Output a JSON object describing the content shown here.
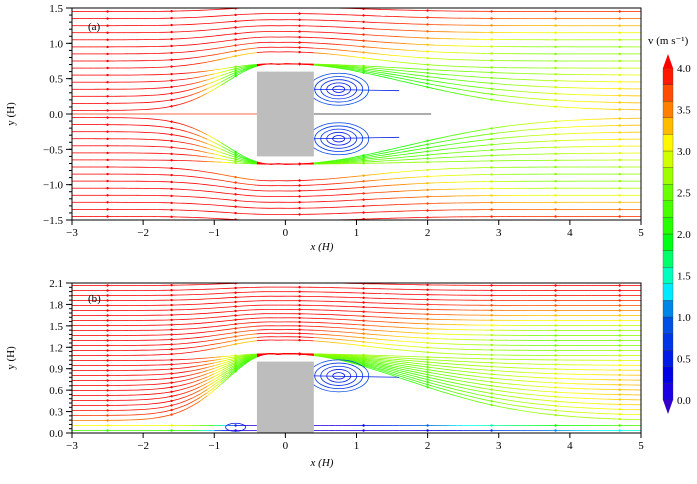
{
  "chart_data": {
    "type": "streamline",
    "panels": [
      {
        "label": "(a)",
        "xlabel": "x (H)",
        "ylabel": "y (H)",
        "xlim": [
          -3,
          5
        ],
        "ylim": [
          -1.5,
          1.5
        ],
        "xticks": [
          -3,
          -2,
          -1,
          0,
          1,
          2,
          3,
          4,
          5
        ],
        "xtick_labels": [
          "−3",
          "−2",
          "−1",
          "0",
          "1",
          "2",
          "3",
          "4",
          "5"
        ],
        "yticks": [
          -1.5,
          -1.0,
          -0.5,
          0.0,
          0.5,
          1.0,
          1.5
        ],
        "ytick_labels": [
          "−1.5",
          "−1.0",
          "−0.5",
          "0.0",
          "0.5",
          "1.0",
          "1.5"
        ],
        "obstacle": {
          "x": [
            -0.4,
            0.4
          ],
          "y": [
            -0.6,
            0.6
          ],
          "color": "#bdbdbd"
        },
        "vortices": [
          {
            "x": 0.75,
            "y": 0.35
          },
          {
            "x": 0.75,
            "y": -0.35
          }
        ]
      },
      {
        "label": "(b)",
        "xlabel": "x (H)",
        "ylabel": "y (H)",
        "xlim": [
          -3,
          5
        ],
        "ylim": [
          0,
          2.1
        ],
        "xticks": [
          -3,
          -2,
          -1,
          0,
          1,
          2,
          3,
          4,
          5
        ],
        "xtick_labels": [
          "−3",
          "−2",
          "−1",
          "0",
          "1",
          "2",
          "3",
          "4",
          "5"
        ],
        "yticks": [
          0.0,
          0.3,
          0.6,
          0.9,
          1.2,
          1.5,
          1.8,
          2.1
        ],
        "ytick_labels": [
          "0.0",
          "0.3",
          "0.6",
          "0.9",
          "1.2",
          "1.5",
          "1.8",
          "2.1"
        ],
        "obstacle": {
          "x": [
            -0.4,
            0.4
          ],
          "y": [
            0,
            1.0
          ],
          "color": "#bdbdbd"
        },
        "vortices": [
          {
            "x": 0.75,
            "y": 0.8
          }
        ]
      }
    ],
    "colorbar": {
      "label": "v (m s⁻¹)",
      "range": [
        0,
        4
      ],
      "step": 0.2,
      "ticks": [
        0.0,
        0.5,
        1.0,
        1.5,
        2.0,
        2.5,
        3.0,
        3.5,
        4.0
      ],
      "tick_labels": [
        "0.0",
        "0.5",
        "1.0",
        "1.5",
        "2.0",
        "2.5",
        "3.0",
        "3.5",
        "4.0"
      ],
      "colormap": "blue-cyan-green-yellow-red"
    }
  }
}
